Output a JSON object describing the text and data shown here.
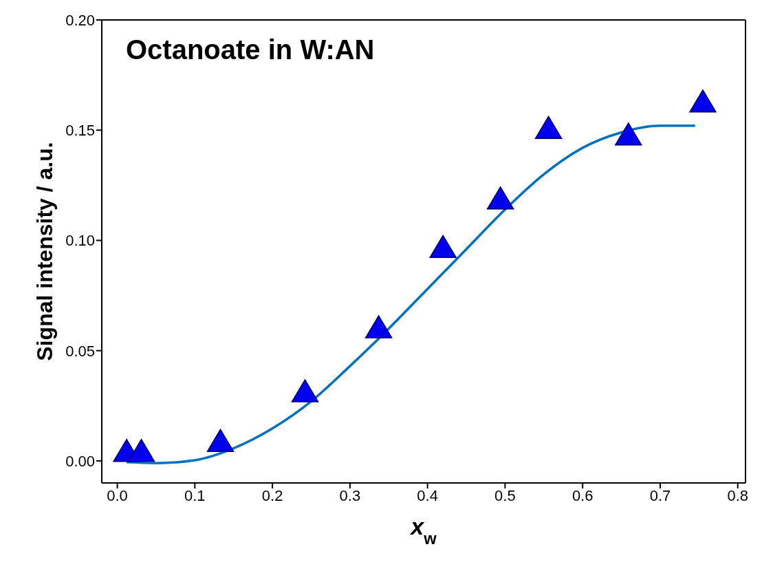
{
  "chart_data": {
    "type": "scatter",
    "title": "Octanoate in W:AN",
    "xlabel": "x$_{w}$",
    "ylabel": "Signal intensity / a.u.",
    "xlim": [
      -0.02,
      0.81
    ],
    "xticks": [
      {
        "value": 0,
        "label": "0.0"
      },
      0.1,
      0.2,
      0.3,
      0.4,
      0.5,
      0.6,
      0.7,
      0.8
    ],
    "ylim": [
      -0.01,
      0.2
    ],
    "yticks": [
      {
        "value": 0,
        "label": "0.00"
      },
      0.05,
      {
        "value": 0.1,
        "label": "0.10"
      },
      0.15,
      {
        "value": 0.2,
        "label": "0.20"
      }
    ],
    "grid": false,
    "legend": false,
    "series": [
      {
        "marker": "triangle",
        "color": "#0000ee",
        "x": [
          0.012,
          0.031,
          0.133,
          0.242,
          0.337,
          0.42,
          0.494,
          0.556,
          0.659,
          0.755
        ],
        "values": [
          0.0035,
          0.0035,
          0.008,
          0.0306,
          0.0596,
          0.096,
          0.118,
          0.15,
          0.147,
          0.162
        ]
      },
      {
        "type": "line",
        "marker": "none",
        "line_style": "solid",
        "color": "#0070c0",
        "x": [
          0.012,
          0.05,
          0.1,
          0.15,
          0.2,
          0.25,
          0.3,
          0.35,
          0.4,
          0.45,
          0.5,
          0.55,
          0.6,
          0.65,
          0.7,
          0.745
        ],
        "values": [
          -0.0006,
          -0.001,
          0.0003,
          0.0057,
          0.0147,
          0.027,
          0.043,
          0.06,
          0.078,
          0.096,
          0.114,
          0.13,
          0.142,
          0.149,
          0.152,
          0.152
        ]
      }
    ]
  }
}
